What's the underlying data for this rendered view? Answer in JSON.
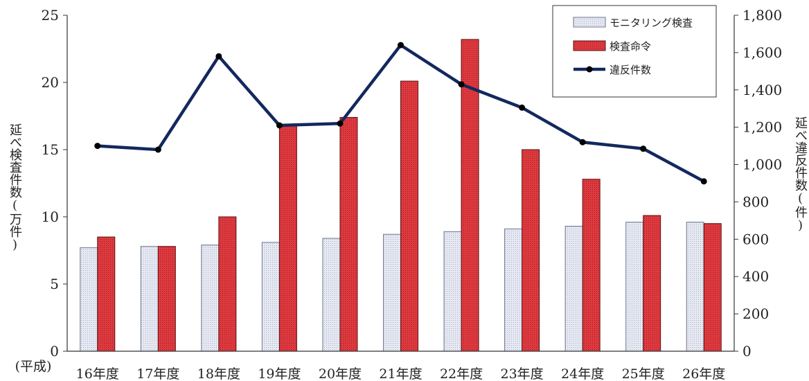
{
  "chart_data": {
    "type": "bar",
    "categories": [
      "16年度",
      "17年度",
      "18年度",
      "19年度",
      "20年度",
      "21年度",
      "22年度",
      "23年度",
      "24年度",
      "25年度",
      "26年度"
    ],
    "x_prefix": "(平成)",
    "series": [
      {
        "name": "モニタリング検査",
        "axis": "left",
        "kind": "bar",
        "color": "#dfe3ef",
        "values": [
          7.7,
          7.8,
          7.9,
          8.1,
          8.4,
          8.7,
          8.9,
          9.1,
          9.3,
          9.6,
          9.6
        ]
      },
      {
        "name": "検査命令",
        "axis": "left",
        "kind": "bar",
        "color": "#d9353a",
        "values": [
          8.5,
          7.8,
          10.0,
          16.8,
          17.4,
          20.1,
          23.2,
          15.0,
          12.8,
          10.1,
          9.5
        ]
      },
      {
        "name": "違反件数",
        "axis": "right",
        "kind": "line",
        "color": "#13285e",
        "values": [
          1100,
          1080,
          1580,
          1210,
          1220,
          1640,
          1430,
          1305,
          1120,
          1085,
          910
        ]
      }
    ],
    "y_left": {
      "label": "延べ検査件数(万件)",
      "ylim": [
        0,
        25
      ],
      "ticks": [
        "0",
        "5",
        "10",
        "15",
        "20",
        "25"
      ]
    },
    "y_right": {
      "label": "延べ違反件数(件)",
      "ylim": [
        0,
        1800
      ],
      "ticks": [
        "0",
        "200",
        "400",
        "600",
        "800",
        "1,000",
        "1,200",
        "1,400",
        "1,600",
        "1,800"
      ]
    },
    "legend_position": "top-right",
    "grid": false
  }
}
